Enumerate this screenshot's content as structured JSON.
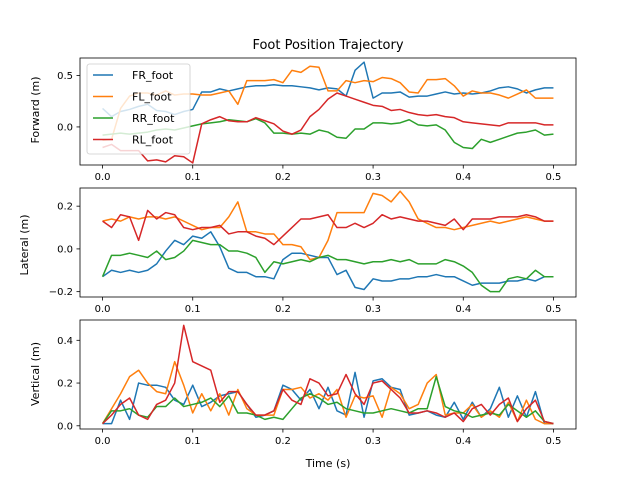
{
  "chart_data": {
    "type": "line",
    "title": "Foot Position Trajectory",
    "xlabel": "Time (s)",
    "x": [
      0.0,
      0.01,
      0.02,
      0.03,
      0.04,
      0.05,
      0.06,
      0.07,
      0.08,
      0.09,
      0.1,
      0.11,
      0.12,
      0.13,
      0.14,
      0.15,
      0.16,
      0.17,
      0.18,
      0.19,
      0.2,
      0.21,
      0.22,
      0.23,
      0.24,
      0.25,
      0.26,
      0.27,
      0.28,
      0.29,
      0.3,
      0.31,
      0.32,
      0.33,
      0.34,
      0.35,
      0.36,
      0.37,
      0.38,
      0.39,
      0.4,
      0.41,
      0.42,
      0.43,
      0.44,
      0.45,
      0.46,
      0.47,
      0.48,
      0.49,
      0.5
    ],
    "xlim": [
      -0.025,
      0.525
    ],
    "xticks": [
      "0.0",
      "0.1",
      "0.2",
      "0.3",
      "0.4",
      "0.5"
    ],
    "legend": {
      "placement": "top-left",
      "panel": 0
    },
    "colors": {
      "FR_foot": "#1f77b4",
      "FL_foot": "#ff7f0e",
      "RR_foot": "#2ca02c",
      "RL_foot": "#d62728"
    },
    "panels": [
      {
        "ylabel": "Forward (m)",
        "ylim": [
          -0.37,
          0.67
        ],
        "yticks": [
          "0.0",
          "0.5"
        ],
        "ytick_values": [
          0.0,
          0.5
        ],
        "series": [
          {
            "name": "FR_foot",
            "values": [
              0.18,
              0.1,
              0.15,
              0.17,
              0.2,
              0.22,
              0.16,
              0.15,
              0.12,
              0.15,
              0.17,
              0.34,
              0.34,
              0.37,
              0.35,
              0.37,
              0.39,
              0.4,
              0.4,
              0.41,
              0.4,
              0.4,
              0.39,
              0.38,
              0.36,
              0.38,
              0.37,
              0.3,
              0.55,
              0.63,
              0.28,
              0.33,
              0.33,
              0.34,
              0.29,
              0.3,
              0.3,
              0.32,
              0.34,
              0.32,
              0.33,
              0.32,
              0.33,
              0.35,
              0.38,
              0.39,
              0.37,
              0.33,
              0.36,
              0.38,
              0.38
            ]
          },
          {
            "name": "FL_foot",
            "values": [
              -0.13,
              -0.12,
              0.18,
              0.3,
              0.33,
              0.33,
              0.31,
              0.35,
              0.31,
              0.32,
              0.32,
              0.31,
              0.31,
              0.33,
              0.35,
              0.22,
              0.45,
              0.45,
              0.45,
              0.46,
              0.43,
              0.55,
              0.53,
              0.59,
              0.58,
              0.35,
              0.35,
              0.45,
              0.43,
              0.45,
              0.44,
              0.48,
              0.47,
              0.43,
              0.34,
              0.33,
              0.46,
              0.46,
              0.47,
              0.4,
              0.3,
              0.35,
              0.33,
              0.33,
              0.31,
              0.28,
              0.32,
              0.36,
              0.28,
              0.28,
              0.28
            ]
          },
          {
            "name": "RR_foot",
            "values": [
              -0.08,
              -0.07,
              -0.06,
              -0.07,
              -0.06,
              -0.05,
              -0.03,
              -0.02,
              -0.03,
              -0.01,
              0.01,
              0.03,
              0.04,
              0.05,
              0.07,
              0.06,
              0.05,
              0.08,
              0.04,
              -0.06,
              -0.06,
              -0.07,
              -0.06,
              -0.07,
              -0.03,
              -0.05,
              -0.1,
              -0.11,
              -0.02,
              -0.02,
              0.04,
              0.04,
              0.03,
              0.04,
              0.07,
              0.02,
              0.01,
              0.02,
              -0.03,
              -0.15,
              -0.2,
              -0.21,
              -0.12,
              -0.15,
              -0.12,
              -0.09,
              -0.06,
              -0.05,
              -0.03,
              -0.08,
              -0.07
            ]
          },
          {
            "name": "RL_foot",
            "values": [
              -0.2,
              -0.17,
              -0.23,
              -0.23,
              -0.23,
              -0.33,
              -0.32,
              -0.34,
              -0.28,
              -0.29,
              -0.35,
              0.03,
              0.07,
              0.1,
              0.06,
              0.05,
              0.05,
              0.09,
              0.06,
              0.03,
              -0.04,
              -0.07,
              -0.03,
              0.1,
              0.17,
              0.27,
              0.33,
              0.3,
              0.27,
              0.24,
              0.21,
              0.2,
              0.16,
              0.17,
              0.14,
              0.12,
              0.11,
              0.12,
              0.1,
              0.09,
              0.05,
              0.04,
              0.03,
              0.02,
              0.01,
              0.04,
              0.04,
              0.04,
              0.04,
              0.02,
              0.02
            ]
          }
        ]
      },
      {
        "ylabel": "Lateral (m)",
        "ylim": [
          -0.225,
          0.285
        ],
        "yticks": [
          "−0.2",
          "0.0",
          "0.2"
        ],
        "ytick_values": [
          -0.2,
          0.0,
          0.2
        ],
        "series": [
          {
            "name": "FR_foot",
            "values": [
              -0.13,
              -0.1,
              -0.11,
              -0.1,
              -0.11,
              -0.1,
              -0.07,
              -0.01,
              0.04,
              0.02,
              0.06,
              0.05,
              0.08,
              0.01,
              -0.09,
              -0.11,
              -0.11,
              -0.13,
              -0.13,
              -0.14,
              -0.05,
              -0.02,
              -0.02,
              -0.03,
              -0.04,
              -0.04,
              -0.12,
              -0.1,
              -0.18,
              -0.19,
              -0.14,
              -0.15,
              -0.15,
              -0.14,
              -0.14,
              -0.13,
              -0.13,
              -0.12,
              -0.13,
              -0.13,
              -0.15,
              -0.17,
              -0.16,
              -0.16,
              -0.16,
              -0.15,
              -0.15,
              -0.14,
              -0.15,
              -0.13,
              -0.13
            ]
          },
          {
            "name": "FL_foot",
            "values": [
              0.13,
              0.14,
              0.13,
              0.15,
              0.14,
              0.15,
              0.15,
              0.14,
              0.15,
              0.13,
              0.11,
              0.09,
              0.1,
              0.1,
              0.15,
              0.22,
              0.08,
              0.08,
              0.07,
              0.07,
              0.02,
              0.02,
              0.01,
              -0.05,
              -0.04,
              0.04,
              0.17,
              0.17,
              0.17,
              0.17,
              0.26,
              0.25,
              0.22,
              0.27,
              0.22,
              0.14,
              0.12,
              0.1,
              0.1,
              0.09,
              0.1,
              0.11,
              0.12,
              0.13,
              0.12,
              0.13,
              0.14,
              0.15,
              0.14,
              0.13,
              0.13
            ]
          },
          {
            "name": "RR_foot",
            "values": [
              -0.13,
              -0.03,
              -0.03,
              -0.02,
              -0.03,
              -0.04,
              -0.01,
              -0.05,
              -0.04,
              -0.01,
              0.04,
              0.03,
              0.02,
              0.02,
              -0.01,
              -0.01,
              -0.02,
              -0.04,
              -0.11,
              -0.06,
              -0.07,
              -0.06,
              -0.05,
              -0.06,
              -0.04,
              -0.03,
              -0.05,
              -0.05,
              -0.06,
              -0.07,
              -0.06,
              -0.06,
              -0.05,
              -0.06,
              -0.05,
              -0.07,
              -0.07,
              -0.07,
              -0.05,
              -0.06,
              -0.08,
              -0.11,
              -0.17,
              -0.2,
              -0.2,
              -0.14,
              -0.13,
              -0.14,
              -0.1,
              -0.13,
              -0.13
            ]
          },
          {
            "name": "RL_foot",
            "values": [
              0.13,
              0.1,
              0.16,
              0.15,
              0.04,
              0.18,
              0.14,
              0.17,
              0.16,
              0.1,
              0.09,
              0.1,
              0.1,
              0.11,
              0.07,
              0.08,
              0.08,
              0.06,
              0.05,
              0.02,
              0.06,
              0.1,
              0.14,
              0.14,
              0.15,
              0.16,
              0.1,
              0.1,
              0.12,
              0.1,
              0.12,
              0.16,
              0.14,
              0.15,
              0.14,
              0.13,
              0.13,
              0.12,
              0.11,
              0.14,
              0.09,
              0.14,
              0.14,
              0.14,
              0.15,
              0.15,
              0.15,
              0.16,
              0.15,
              0.13,
              0.13
            ]
          }
        ]
      },
      {
        "ylabel": "Vertical (m)",
        "ylim": [
          -0.015,
          0.495
        ],
        "yticks": [
          "0.0",
          "0.2",
          "0.4"
        ],
        "ytick_values": [
          0.0,
          0.2,
          0.4
        ],
        "series": [
          {
            "name": "FR_foot",
            "values": [
              0.01,
              0.01,
              0.12,
              0.03,
              0.2,
              0.19,
              0.19,
              0.18,
              0.12,
              0.1,
              0.19,
              0.09,
              0.11,
              0.14,
              0.15,
              0.16,
              0.1,
              0.04,
              0.05,
              0.07,
              0.19,
              0.17,
              0.12,
              0.17,
              0.08,
              0.18,
              0.07,
              0.05,
              0.25,
              0.04,
              0.21,
              0.22,
              0.18,
              0.17,
              0.05,
              0.06,
              0.07,
              0.05,
              0.04,
              0.11,
              0.03,
              0.11,
              0.04,
              0.08,
              0.18,
              0.04,
              0.14,
              0.04,
              0.16,
              0.01,
              0.01
            ]
          },
          {
            "name": "FL_foot",
            "values": [
              0.01,
              0.08,
              0.15,
              0.23,
              0.26,
              0.2,
              0.16,
              0.15,
              0.3,
              0.19,
              0.06,
              0.15,
              0.07,
              0.15,
              0.05,
              0.17,
              0.08,
              0.05,
              0.05,
              0.05,
              0.17,
              0.17,
              0.18,
              0.13,
              0.15,
              0.12,
              0.17,
              0.04,
              0.14,
              0.13,
              0.14,
              0.04,
              0.18,
              0.15,
              0.08,
              0.1,
              0.2,
              0.24,
              0.05,
              0.06,
              0.06,
              0.1,
              0.04,
              0.07,
              0.04,
              0.11,
              0.02,
              0.12,
              0.03,
              0.01,
              0.01
            ]
          },
          {
            "name": "RR_foot",
            "values": [
              0.01,
              0.07,
              0.07,
              0.08,
              0.05,
              0.04,
              0.09,
              0.09,
              0.13,
              0.09,
              0.1,
              0.11,
              0.13,
              0.09,
              0.14,
              0.06,
              0.06,
              0.05,
              0.03,
              0.04,
              0.03,
              0.08,
              0.13,
              0.15,
              0.13,
              0.1,
              0.11,
              0.08,
              0.07,
              0.06,
              0.06,
              0.07,
              0.08,
              0.07,
              0.06,
              0.08,
              0.08,
              0.23,
              0.09,
              0.07,
              0.06,
              0.04,
              0.05,
              0.06,
              0.05,
              0.1,
              0.07,
              0.04,
              0.07,
              0.02,
              0.01
            ]
          },
          {
            "name": "RL_foot",
            "values": [
              0.01,
              0.05,
              0.1,
              0.13,
              0.05,
              0.03,
              0.1,
              0.12,
              0.2,
              0.47,
              0.3,
              0.28,
              0.26,
              0.11,
              0.16,
              0.16,
              0.1,
              0.05,
              0.05,
              0.07,
              0.17,
              0.12,
              0.1,
              0.22,
              0.2,
              0.14,
              0.15,
              0.24,
              0.15,
              0.1,
              0.2,
              0.21,
              0.17,
              0.13,
              0.06,
              0.06,
              0.07,
              0.06,
              0.04,
              0.06,
              0.02,
              0.08,
              0.1,
              0.05,
              0.1,
              0.13,
              0.02,
              0.08,
              0.12,
              0.02,
              0.01
            ]
          }
        ]
      }
    ]
  }
}
